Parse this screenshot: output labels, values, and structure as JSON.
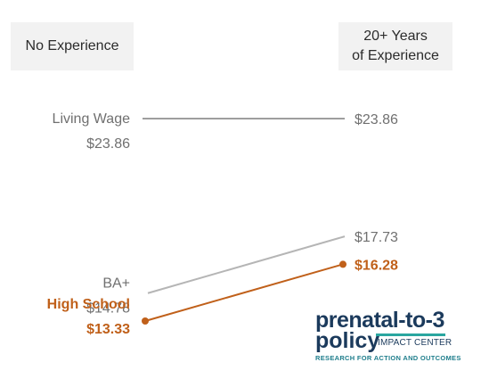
{
  "chart_data": {
    "type": "slope",
    "columns": [
      "No Experience",
      "20+ Years\nof Experience"
    ],
    "columns_display": {
      "left": "No Experience",
      "right_line1": "20+ Years",
      "right_line2": "of Experience"
    },
    "ylim": [
      12,
      25
    ],
    "series": [
      {
        "name": "Living Wage",
        "start": 23.86,
        "end": 23.86,
        "start_label": "$23.86",
        "end_label": "$23.86",
        "color": "#9e9e9e",
        "markers": false
      },
      {
        "name": "BA+",
        "start": 14.78,
        "end": 17.73,
        "start_label": "$14.78",
        "end_label": "$17.73",
        "color": "#b5b5b5",
        "markers": false
      },
      {
        "name": "High School",
        "start": 13.33,
        "end": 16.28,
        "start_label": "$13.33",
        "end_label": "$16.28",
        "color": "#c0601a",
        "markers": true
      }
    ]
  },
  "logo": {
    "line1": "prenatal-to-3",
    "line2": "policy",
    "subtitle": "IMPACT CENTER",
    "tagline": "RESEARCH FOR ACTION AND OUTCOMES"
  }
}
